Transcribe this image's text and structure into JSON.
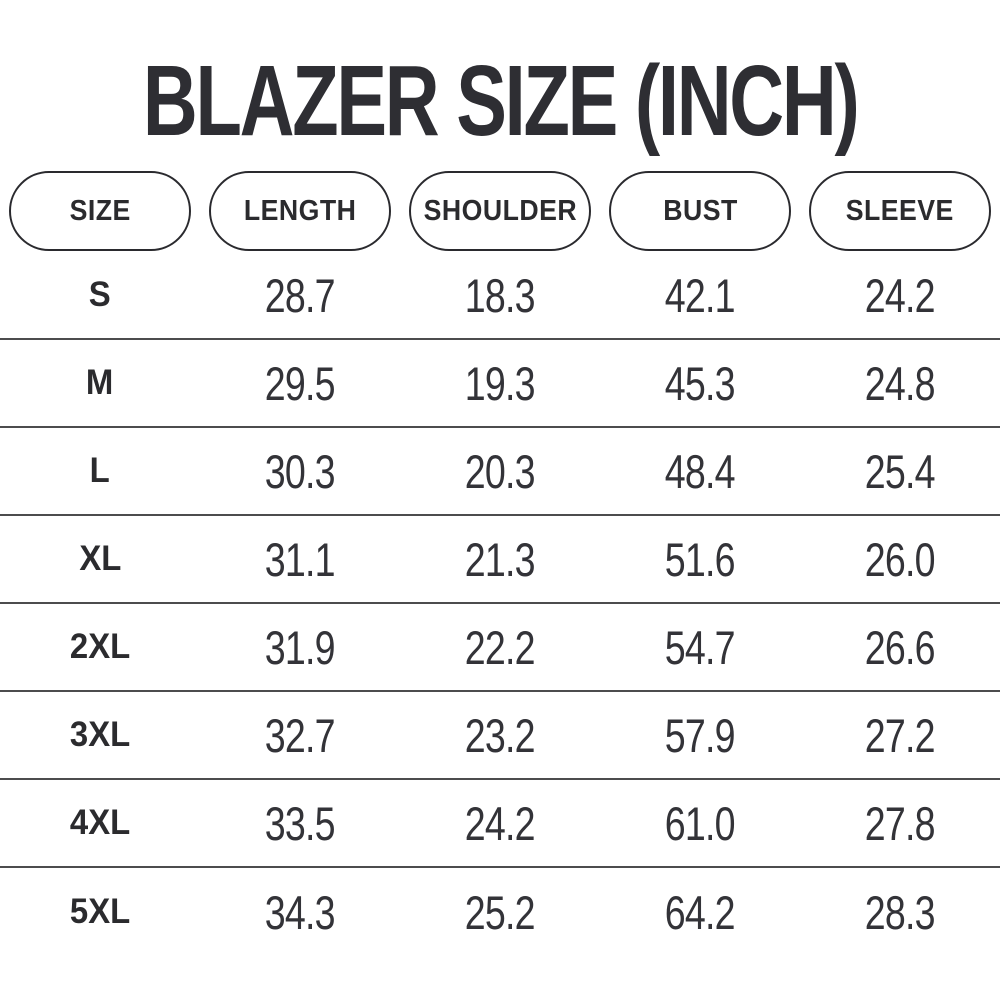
{
  "title": "BLAZER SIZE (INCH)",
  "colors": {
    "text": "#2e2e33",
    "divider": "#4c4c4e",
    "pill_border": "#2a2a2e",
    "background": "#ffffff"
  },
  "chart_data": {
    "type": "table",
    "title": "BLAZER SIZE (INCH)",
    "unit": "inch",
    "columns": [
      "SIZE",
      "LENGTH",
      "SHOULDER",
      "BUST",
      "SLEEVE"
    ],
    "rows": [
      {
        "size": "S",
        "values": [
          "28.7",
          "18.3",
          "42.1",
          "24.2"
        ]
      },
      {
        "size": "M",
        "values": [
          "29.5",
          "19.3",
          "45.3",
          "24.8"
        ]
      },
      {
        "size": "L",
        "values": [
          "30.3",
          "20.3",
          "48.4",
          "25.4"
        ]
      },
      {
        "size": "XL",
        "values": [
          "31.1",
          "21.3",
          "51.6",
          "26.0"
        ]
      },
      {
        "size": "2XL",
        "values": [
          "31.9",
          "22.2",
          "54.7",
          "26.6"
        ]
      },
      {
        "size": "3XL",
        "values": [
          "32.7",
          "23.2",
          "57.9",
          "27.2"
        ]
      },
      {
        "size": "4XL",
        "values": [
          "33.5",
          "24.2",
          "61.0",
          "27.8"
        ]
      },
      {
        "size": "5XL",
        "values": [
          "34.3",
          "25.2",
          "64.2",
          "28.3"
        ]
      }
    ]
  }
}
